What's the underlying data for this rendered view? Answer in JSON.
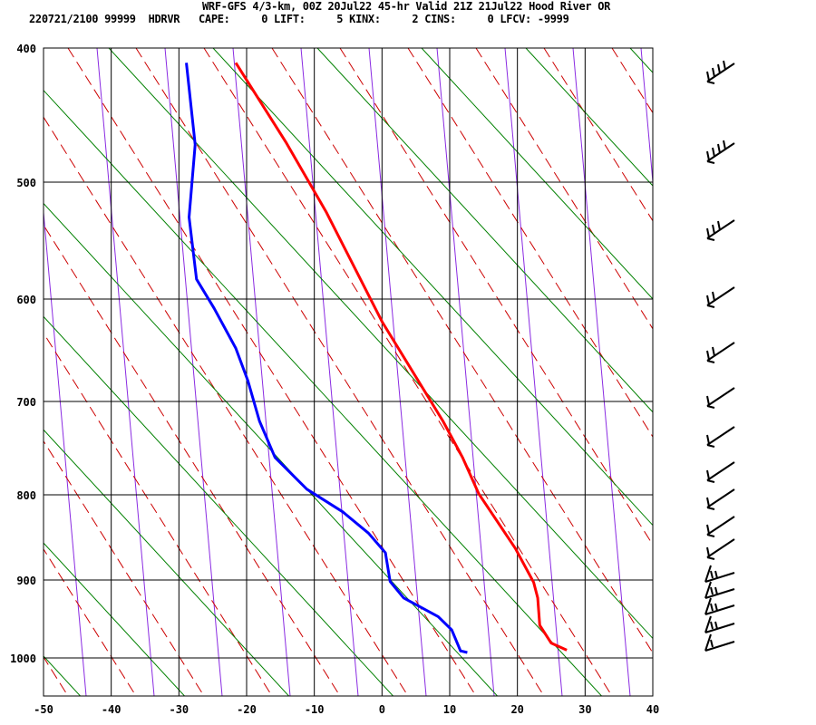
{
  "header": {
    "title": "WRF-GFS 4/3-km, 00Z 20Jul22 45-hr Valid 21Z 21Jul22 Hood River OR",
    "subtitle": "220721/2100 99999  HDRVR   CAPE:     0 LIFT:     5 KINX:     2 CINS:     0 LFCV: -9999"
  },
  "chart_data": {
    "type": "line",
    "chart_kind": "skew-T log-p sounding",
    "xlim": [
      -50,
      40
    ],
    "x_ticks": [
      "-50",
      "-40",
      "-30",
      "-20",
      "-10",
      "0",
      "10",
      "20",
      "30",
      "40"
    ],
    "p_ticks": [
      "400",
      "500",
      "600",
      "700",
      "800",
      "900",
      "1000"
    ],
    "grid": true,
    "colors": {
      "temperature": "#ff0000",
      "dewpoint": "#0000ff",
      "dry_adiabat": "#008000",
      "moist_adiabat": "#cc0000",
      "mixing_ratio": "#8a2be2"
    },
    "series": [
      {
        "key": "temperature",
        "points": [
          [
            411,
            -21.6
          ],
          [
            471,
            -14.1
          ],
          [
            526,
            -8.2
          ],
          [
            622,
            0.0
          ],
          [
            721,
            9.0
          ],
          [
            760,
            11.9
          ],
          [
            799,
            14.3
          ],
          [
            863,
            19.7
          ],
          [
            903,
            22.4
          ],
          [
            923,
            23.0
          ],
          [
            958,
            23.3
          ],
          [
            981,
            25.0
          ],
          [
            990,
            27.3
          ]
        ]
      },
      {
        "key": "dewpoint",
        "points": [
          [
            411,
            -28.9
          ],
          [
            472,
            -27.6
          ],
          [
            530,
            -28.5
          ],
          [
            583,
            -27.4
          ],
          [
            609,
            -24.8
          ],
          [
            648,
            -21.6
          ],
          [
            680,
            -19.8
          ],
          [
            721,
            -18.1
          ],
          [
            760,
            -15.8
          ],
          [
            794,
            -11.1
          ],
          [
            820,
            -5.8
          ],
          [
            845,
            -2.0
          ],
          [
            868,
            0.5
          ],
          [
            902,
            1.2
          ],
          [
            923,
            3.2
          ],
          [
            947,
            8.3
          ],
          [
            964,
            10.3
          ],
          [
            991,
            11.6
          ],
          [
            993,
            12.6
          ]
        ]
      }
    ]
  }
}
